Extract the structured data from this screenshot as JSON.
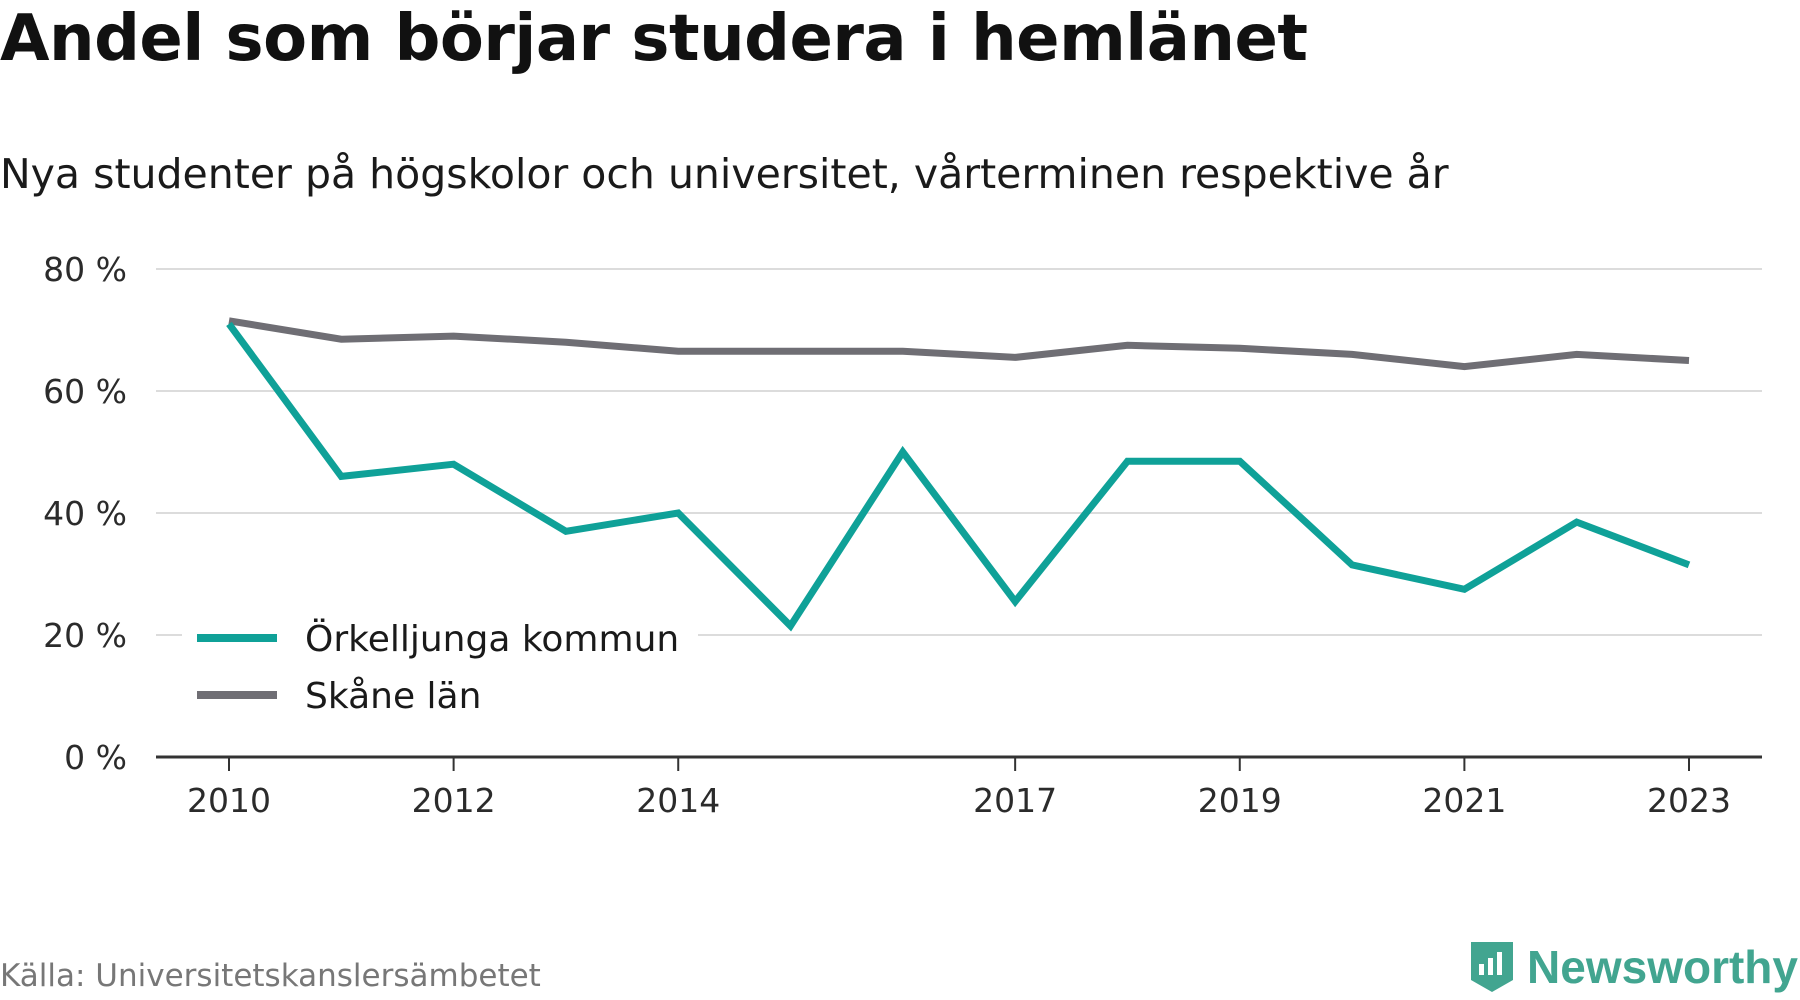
{
  "header": {
    "title": "Andel som börjar studera i hemlänet",
    "subtitle": "Nya studenter på högskolor och universitet, vårterminen respektive år"
  },
  "footer": {
    "source": "Källa: Universitetskanslersämbetet",
    "brand": "Newsworthy",
    "brand_color": "#42a590"
  },
  "chart_data": {
    "type": "line",
    "title": "Andel som börjar studera i hemlänet",
    "subtitle": "Nya studenter på högskolor och universitet, vårterminen respektive år",
    "x": [
      2010,
      2011,
      2012,
      2013,
      2014,
      2015,
      2016,
      2017,
      2018,
      2019,
      2020,
      2021,
      2022,
      2023
    ],
    "x_tick_labels": [
      "2010",
      "2012",
      "2014",
      "2017",
      "2019",
      "2021",
      "2023"
    ],
    "y_tick_labels": [
      "0 %",
      "20 %",
      "40 %",
      "60 %",
      "80 %"
    ],
    "y_ticks": [
      0,
      20,
      40,
      60,
      80
    ],
    "ylim": [
      0,
      80
    ],
    "xlim": [
      2009.35,
      2023.65
    ],
    "grid": true,
    "legend_position": "lower-left",
    "series": [
      {
        "name": "Örkelljunga kommun",
        "color": "#0fa198",
        "values": [
          71,
          46,
          48,
          37,
          40,
          21.5,
          50,
          25.5,
          48.5,
          48.5,
          31.5,
          27.5,
          38.5,
          31.5
        ]
      },
      {
        "name": "Skåne län",
        "color": "#6f6e74",
        "values": [
          71.5,
          68.5,
          69,
          68,
          66.5,
          66.5,
          66.5,
          65.5,
          67.5,
          67,
          66,
          64,
          66,
          65
        ]
      }
    ]
  }
}
